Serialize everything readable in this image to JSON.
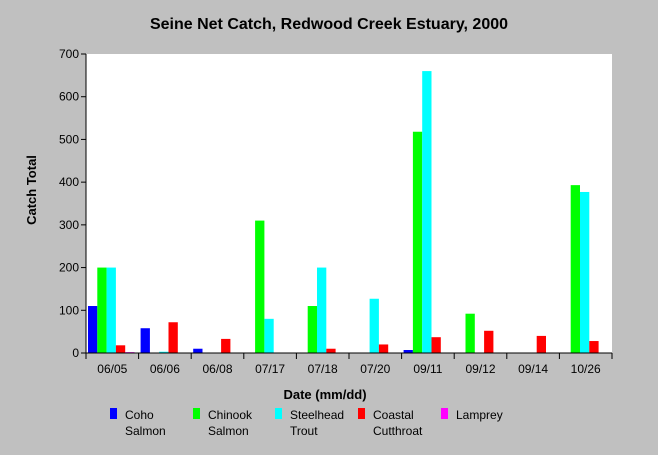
{
  "chart_data": {
    "type": "bar",
    "title": "Seine Net Catch, Redwood Creek Estuary, 2000",
    "xlabel": "Date (mm/dd)",
    "ylabel": "Catch Total",
    "ylim": [
      0,
      700
    ],
    "yticks": [
      0,
      100,
      200,
      300,
      400,
      500,
      600,
      700
    ],
    "grid": false,
    "legend_position": "bottom",
    "categories": [
      "06/05",
      "06/06",
      "06/08",
      "07/17",
      "07/18",
      "07/20",
      "09/11",
      "09/12",
      "09/14",
      "10/26"
    ],
    "series": [
      {
        "name": "Coho Salmon",
        "legend_lines": [
          "Coho",
          "Salmon"
        ],
        "color": "#0000ff",
        "values": [
          110,
          58,
          10,
          0,
          0,
          0,
          7,
          0,
          0,
          0
        ]
      },
      {
        "name": "Chinook Salmon",
        "legend_lines": [
          "Chinook",
          "Salmon"
        ],
        "color": "#00ff00",
        "values": [
          200,
          0,
          0,
          310,
          110,
          0,
          518,
          92,
          0,
          393
        ]
      },
      {
        "name": "Steelhead Trout",
        "legend_lines": [
          "Steelhead",
          "Trout"
        ],
        "color": "#00ffff",
        "values": [
          200,
          3,
          0,
          80,
          200,
          127,
          660,
          0,
          0,
          377
        ]
      },
      {
        "name": "Coastal Cutthroat",
        "legend_lines": [
          "Coastal",
          "Cutthroat"
        ],
        "color": "#ff0000",
        "values": [
          18,
          72,
          33,
          0,
          10,
          20,
          37,
          52,
          40,
          28
        ]
      },
      {
        "name": "Lamprey",
        "legend_lines": [
          "Lamprey"
        ],
        "color": "#ff00ff",
        "values": [
          2,
          0,
          0,
          0,
          0,
          0,
          0,
          0,
          0,
          0
        ]
      }
    ]
  }
}
